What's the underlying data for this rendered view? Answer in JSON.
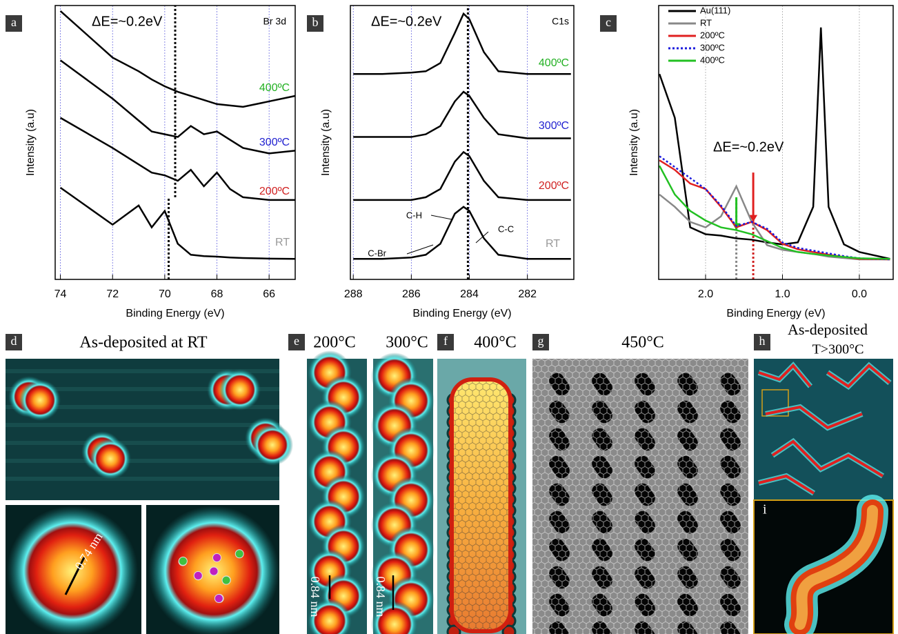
{
  "chart_data": [
    {
      "type": "line",
      "label": "a",
      "xlabel": "Binding Energy (eV)",
      "ylabel": "Intensity (a.u)",
      "xlim": [
        74.2,
        65
      ],
      "ylim": [
        0,
        10
      ],
      "xticks": [
        74,
        72,
        70,
        68,
        66
      ],
      "grid": true,
      "grid_color": "#6a6ae0",
      "annotations": [
        "ΔE=~0.2eV",
        "Br 3d"
      ],
      "ref_lines": [
        {
          "x": 69.6,
          "y": [
            3.0,
            10
          ],
          "color": "#000"
        },
        {
          "x": 69.85,
          "y": [
            0,
            3.0
          ],
          "color": "#000"
        }
      ],
      "x": [
        74,
        72,
        71,
        70.5,
        70,
        69.5,
        69,
        68.5,
        68,
        67.5,
        67,
        66,
        65
      ],
      "series": [
        {
          "name": "400ºC",
          "color": "#000",
          "label_color": "#22b022",
          "values": [
            9.8,
            8.1,
            7.6,
            7.3,
            7.05,
            6.85,
            6.7,
            6.55,
            6.4,
            6.35,
            6.3,
            6.5,
            6.7
          ]
        },
        {
          "name": "300ºC",
          "color": "#000",
          "label_color": "#2020d0",
          "values": [
            8.0,
            6.6,
            5.8,
            5.4,
            5.3,
            5.2,
            5.6,
            5.3,
            5.4,
            5.1,
            4.8,
            4.6,
            4.7
          ]
        },
        {
          "name": "200ºC",
          "color": "#000",
          "label_color": "#d02020",
          "values": [
            5.9,
            4.8,
            4.2,
            3.9,
            3.8,
            3.6,
            4.0,
            3.4,
            3.9,
            3.3,
            3.0,
            2.9,
            2.9
          ]
        },
        {
          "name": "RT",
          "color": "#000",
          "label_color": "#999",
          "values": [
            3.35,
            2.0,
            2.7,
            1.9,
            2.5,
            1.3,
            0.9,
            0.85,
            0.83,
            0.8,
            0.78,
            0.76,
            0.75
          ]
        }
      ]
    },
    {
      "type": "line",
      "label": "b",
      "xlabel": "Binding Energy (eV)",
      "ylabel": "Intensity (a.u)",
      "xlim": [
        288.1,
        280.4
      ],
      "ylim": [
        0,
        10
      ],
      "xticks": [
        288,
        286,
        284,
        282
      ],
      "grid": true,
      "grid_color": "#6a6ae0",
      "annotations": [
        "ΔE=~0.2eV",
        "C1s",
        "C-H",
        "C-Br",
        "C-C"
      ],
      "ref_lines": [
        {
          "x": 284.05,
          "y": [
            0,
            10
          ],
          "color": "#000"
        }
      ],
      "x": [
        288,
        287,
        286,
        285.5,
        285,
        284.5,
        284.2,
        284,
        283.5,
        283,
        282,
        281,
        280.5
      ],
      "series": [
        {
          "name": "400ºC",
          "color": "#000",
          "label_color": "#22b022",
          "values": [
            7.5,
            7.5,
            7.55,
            7.6,
            7.9,
            9.0,
            9.7,
            9.5,
            8.3,
            7.6,
            7.5,
            7.5,
            7.5
          ]
        },
        {
          "name": "300ºC",
          "color": "#000",
          "label_color": "#2020d0",
          "values": [
            5.2,
            5.2,
            5.2,
            5.3,
            5.6,
            6.5,
            6.85,
            6.7,
            5.9,
            5.3,
            5.15,
            5.15,
            5.15
          ]
        },
        {
          "name": "200ºC",
          "color": "#000",
          "label_color": "#d02020",
          "values": [
            2.9,
            2.9,
            2.9,
            3.0,
            3.3,
            4.3,
            4.65,
            4.5,
            3.6,
            3.0,
            2.9,
            2.9,
            2.9
          ]
        },
        {
          "name": "RT",
          "color": "#000",
          "label_color": "#999",
          "values": [
            0.75,
            0.75,
            0.8,
            0.9,
            1.3,
            2.4,
            2.65,
            2.5,
            1.5,
            0.9,
            0.75,
            0.75,
            0.75
          ]
        }
      ]
    },
    {
      "type": "line",
      "label": "c",
      "xlabel": "Binding Energy (eV)",
      "ylabel": "Intensity (a.u)",
      "xlim": [
        2.61,
        -0.44
      ],
      "ylim": [
        0,
        10
      ],
      "xticks": [
        {
          "value": 2,
          "label": "2.0"
        },
        {
          "value": 1,
          "label": "1.0"
        },
        {
          "value": 0,
          "label": "0.0"
        }
      ],
      "grid": true,
      "grid_color": "#aaa",
      "legend": "top-left",
      "annotations": [
        "ΔE=~0.2eV"
      ],
      "ref_lines": [
        {
          "x": 1.6,
          "y": [
            0,
            3.0
          ],
          "color": "#888"
        },
        {
          "x": 1.38,
          "y": [
            0,
            2.1
          ],
          "color": "#d02020"
        },
        {
          "x": 1.38,
          "y": [
            3.9,
            2.1
          ],
          "color": "#e02020",
          "arrow": true
        },
        {
          "x": 1.6,
          "y": [
            3.0,
            1.8
          ],
          "color": "#22c022",
          "arrow": true
        }
      ],
      "x": [
        2.6,
        2.4,
        2.2,
        2.0,
        1.8,
        1.6,
        1.4,
        1.2,
        1.0,
        0.8,
        0.6,
        0.5,
        0.4,
        0.2,
        0.0,
        -0.4
      ],
      "series": [
        {
          "name": "Au(111)",
          "color": "#000",
          "values": [
            7.5,
            5.9,
            1.9,
            1.65,
            1.6,
            1.5,
            1.45,
            1.35,
            1.28,
            1.35,
            2.65,
            9.2,
            2.65,
            1.28,
            1.0,
            0.75
          ]
        },
        {
          "name": "RT",
          "color": "#888",
          "values": [
            3.1,
            2.65,
            2.1,
            1.9,
            2.3,
            3.4,
            2.1,
            1.25,
            1.08,
            1.0,
            0.93,
            0.88,
            0.83,
            0.78,
            0.73,
            0.73
          ]
        },
        {
          "name": "200ºC",
          "color": "#e02020",
          "values": [
            4.35,
            4.0,
            3.5,
            3.3,
            2.65,
            1.9,
            2.1,
            1.8,
            1.3,
            1.1,
            1.0,
            0.95,
            0.9,
            0.82,
            0.75,
            0.73
          ]
        },
        {
          "name": "300ºC",
          "color": "#1a1adc",
          "dash": true,
          "values": [
            4.5,
            4.1,
            3.7,
            3.3,
            2.7,
            1.95,
            2.1,
            1.85,
            1.35,
            1.15,
            1.05,
            1.0,
            0.95,
            0.85,
            0.77,
            0.73
          ]
        },
        {
          "name": "400ºC",
          "color": "#22c022",
          "values": [
            4.15,
            3.1,
            2.5,
            2.15,
            1.9,
            1.8,
            1.65,
            1.4,
            1.15,
            1.0,
            0.93,
            0.9,
            0.87,
            0.82,
            0.77,
            0.75
          ]
        }
      ]
    }
  ],
  "panels": {
    "d": {
      "label": "d",
      "title": "As-deposited at RT",
      "scale": "0.74 nm"
    },
    "e": {
      "label": "e",
      "title": "200°C",
      "title_2": "300°C",
      "scale": "0.84 nm",
      "scale_2": "0.84 nm"
    },
    "f": {
      "label": "f",
      "title": "400°C"
    },
    "g": {
      "label": "g",
      "title": "450°C"
    },
    "h": {
      "label": "h",
      "title": "As-deposited",
      "subtitle": "T>300°C"
    },
    "i": {
      "label": "i"
    }
  }
}
